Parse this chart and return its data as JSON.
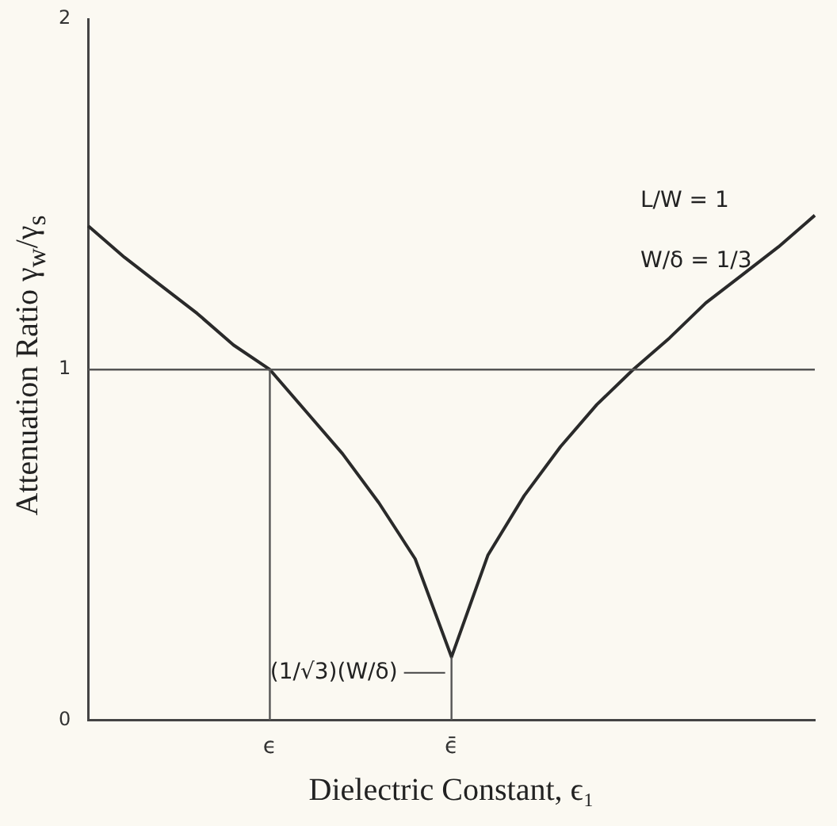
{
  "chart_data": {
    "type": "line",
    "xlabel": "Dielectric Constant, ϵ₁",
    "ylabel": "Attenuation Ratio γ$_{w}$/γ$_{s}$",
    "categories": [
      null,
      null,
      null,
      null,
      null,
      "ϵ",
      null,
      null,
      null,
      null,
      "ϵ̄",
      null,
      null,
      null,
      null,
      null,
      null,
      null,
      null,
      null,
      null
    ],
    "series": [
      {
        "color": "#2a2a2a",
        "values": [
          1.41,
          1.32,
          1.24,
          1.16,
          1.07,
          1.0,
          0.88,
          0.76,
          0.62,
          0.46,
          0.18,
          0.47,
          0.64,
          0.78,
          0.9,
          1.0,
          1.09,
          1.19,
          1.27,
          1.35,
          1.44
        ]
      }
    ],
    "ylim": [
      0,
      2
    ],
    "yticks": [
      0,
      1,
      2
    ],
    "grid": false,
    "legend": false,
    "marker": "none",
    "line_style": "solid",
    "ref_lines": [
      {
        "axis": "y",
        "value": 1,
        "color": "#555555"
      },
      {
        "axis": "x",
        "value": "ϵ",
        "color": "#555555"
      },
      {
        "axis": "x",
        "value": "ϵ̄",
        "color": "#555555"
      }
    ],
    "annotations": [
      "L/W = 1",
      "W/δ = 1/3",
      {
        "text": "(1/√3)(W/δ)",
        "x": "ϵ̄",
        "y": 0.18
      }
    ]
  }
}
